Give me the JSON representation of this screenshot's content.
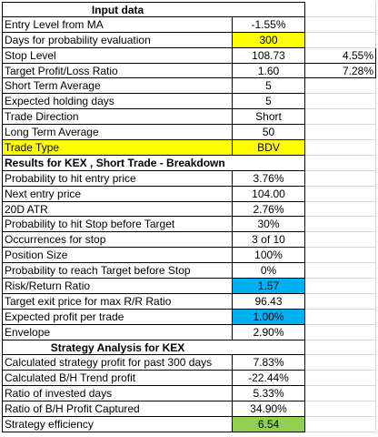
{
  "colors": {
    "yellow": "#ffff00",
    "blue": "#00b0f0",
    "green": "#92d050"
  },
  "rows": [
    {
      "label": "Input data",
      "value": "",
      "extra": "",
      "style": "head"
    },
    {
      "label": "Entry Level from MA",
      "value": "-1.55%",
      "extra": ""
    },
    {
      "label": "Days for probability evaluation",
      "value": "300",
      "extra": "",
      "fill": "yellow"
    },
    {
      "label": "Stop Level",
      "value": "108.73",
      "extra": "4.55%"
    },
    {
      "label": "Target Profit/Loss Ratio",
      "value": "1.60",
      "extra": "7.28%"
    },
    {
      "label": "Short Term Average",
      "value": "5",
      "extra": ""
    },
    {
      "label": "Expected holding days",
      "value": "5",
      "extra": ""
    },
    {
      "label": "Trade Direction",
      "value": "Short",
      "extra": ""
    },
    {
      "label": "Long Term Average",
      "value": "50",
      "extra": ""
    },
    {
      "label": "Trade Type",
      "value": "BDV",
      "extra": "",
      "fill": "yellow",
      "labelFill": "yellow"
    },
    {
      "label": "Results for KEX , Short Trade - Breakdown",
      "value": "",
      "extra": "",
      "style": "sect"
    },
    {
      "label": "Probability to hit entry price",
      "value": "3.76%",
      "extra": ""
    },
    {
      "label": "Next entry price",
      "value": "104.00",
      "extra": ""
    },
    {
      "label": "20D ATR",
      "value": "2.76%",
      "extra": ""
    },
    {
      "label": "Probability to hit Stop before Target",
      "value": "30%",
      "extra": ""
    },
    {
      "label": "Occurrences for stop",
      "value": "3 of 10",
      "extra": ""
    },
    {
      "label": "Position Size",
      "value": "100%",
      "extra": ""
    },
    {
      "label": "Probability to reach Target before Stop",
      "value": "0%",
      "extra": ""
    },
    {
      "label": "Risk/Return Ratio",
      "value": "1.57",
      "extra": "",
      "fill": "blue"
    },
    {
      "label": "Target exit price for max R/R Ratio",
      "value": "96.43",
      "extra": ""
    },
    {
      "label": "Expected profit per trade",
      "value": "1.00%",
      "extra": "",
      "fill": "blue"
    },
    {
      "label": "Envelope",
      "value": "2.90%",
      "extra": ""
    },
    {
      "label": "Strategy Analysis for KEX",
      "value": "",
      "extra": "",
      "style": "head"
    },
    {
      "label": "Calculated strategy profit for past 300 days",
      "value": "7.83%",
      "extra": ""
    },
    {
      "label": "Calculated B/H Trend profit",
      "value": "-22.44%",
      "extra": ""
    },
    {
      "label": "Ratio of invested days",
      "value": "5.33%",
      "extra": ""
    },
    {
      "label": "Ratio of B/H Profit Captured",
      "value": "34.90%",
      "extra": ""
    },
    {
      "label": "Strategy efficiency",
      "value": "6.54",
      "extra": "",
      "fill": "green"
    }
  ]
}
